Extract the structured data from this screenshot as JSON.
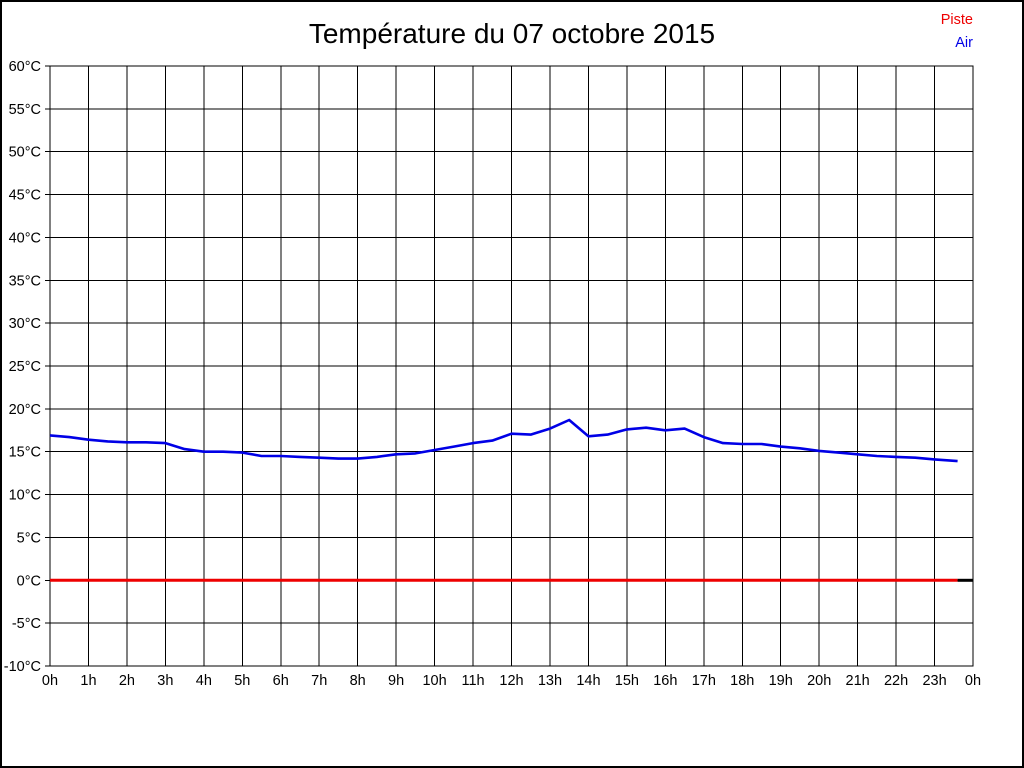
{
  "page": {
    "background": "#ffffff",
    "border_color": "#000000"
  },
  "header": {
    "title": "Température du 07 octobre 2015"
  },
  "legend": {
    "items": [
      {
        "label": "Piste",
        "color": "#ee0000"
      },
      {
        "label": "Air",
        "color": "#0000e6"
      }
    ]
  },
  "chart_data": {
    "type": "line",
    "title": "Température du 07 octobre 2015",
    "xlabel": "",
    "ylabel": "",
    "xlim": [
      0,
      24
    ],
    "ylim": [
      -10,
      60
    ],
    "y_tick_step": 5,
    "grid": true,
    "grid_color": "#000000",
    "legend_position": "top-right",
    "x_tick_labels": [
      "0h",
      "1h",
      "2h",
      "3h",
      "4h",
      "5h",
      "6h",
      "7h",
      "8h",
      "9h",
      "10h",
      "11h",
      "12h",
      "13h",
      "14h",
      "15h",
      "16h",
      "17h",
      "18h",
      "19h",
      "20h",
      "21h",
      "22h",
      "23h",
      "0h"
    ],
    "y_tick_labels": [
      "-10°C",
      "-5°C",
      "0°C",
      "5°C",
      "10°C",
      "15°C",
      "20°C",
      "25°C",
      "30°C",
      "35°C",
      "40°C",
      "45°C",
      "50°C",
      "55°C",
      "60°C"
    ],
    "series": [
      {
        "name": "Piste",
        "color": "#ee0000",
        "width": 3,
        "points": [
          [
            0,
            0
          ],
          [
            23.6,
            0
          ]
        ]
      },
      {
        "name": "Air",
        "color": "#0000e6",
        "width": 2.6,
        "points": [
          [
            0,
            16.9
          ],
          [
            0.5,
            16.7
          ],
          [
            1,
            16.4
          ],
          [
            1.5,
            16.2
          ],
          [
            2,
            16.1
          ],
          [
            2.5,
            16.1
          ],
          [
            3,
            16.0
          ],
          [
            3.5,
            15.3
          ],
          [
            4,
            15.0
          ],
          [
            4.5,
            15.0
          ],
          [
            5,
            14.9
          ],
          [
            5.5,
            14.5
          ],
          [
            6,
            14.5
          ],
          [
            6.5,
            14.4
          ],
          [
            7,
            14.3
          ],
          [
            7.5,
            14.2
          ],
          [
            8,
            14.2
          ],
          [
            8.5,
            14.4
          ],
          [
            9,
            14.7
          ],
          [
            9.5,
            14.8
          ],
          [
            10,
            15.2
          ],
          [
            10.5,
            15.6
          ],
          [
            11,
            16.0
          ],
          [
            11.5,
            16.3
          ],
          [
            12,
            17.1
          ],
          [
            12.5,
            17.0
          ],
          [
            13,
            17.7
          ],
          [
            13.5,
            18.7
          ],
          [
            14,
            16.8
          ],
          [
            14.5,
            17.0
          ],
          [
            15,
            17.6
          ],
          [
            15.5,
            17.8
          ],
          [
            16,
            17.5
          ],
          [
            16.5,
            17.7
          ],
          [
            17,
            16.7
          ],
          [
            17.5,
            16.0
          ],
          [
            18,
            15.9
          ],
          [
            18.5,
            15.9
          ],
          [
            19,
            15.6
          ],
          [
            19.5,
            15.4
          ],
          [
            20,
            15.1
          ],
          [
            20.5,
            14.9
          ],
          [
            21,
            14.7
          ],
          [
            21.5,
            14.5
          ],
          [
            22,
            14.4
          ],
          [
            22.5,
            14.3
          ],
          [
            23,
            14.1
          ],
          [
            23.6,
            13.9
          ]
        ]
      },
      {
        "name": "piste-end-segment",
        "color": "#000000",
        "width": 3,
        "points": [
          [
            23.6,
            0
          ],
          [
            24,
            0
          ]
        ]
      }
    ]
  }
}
